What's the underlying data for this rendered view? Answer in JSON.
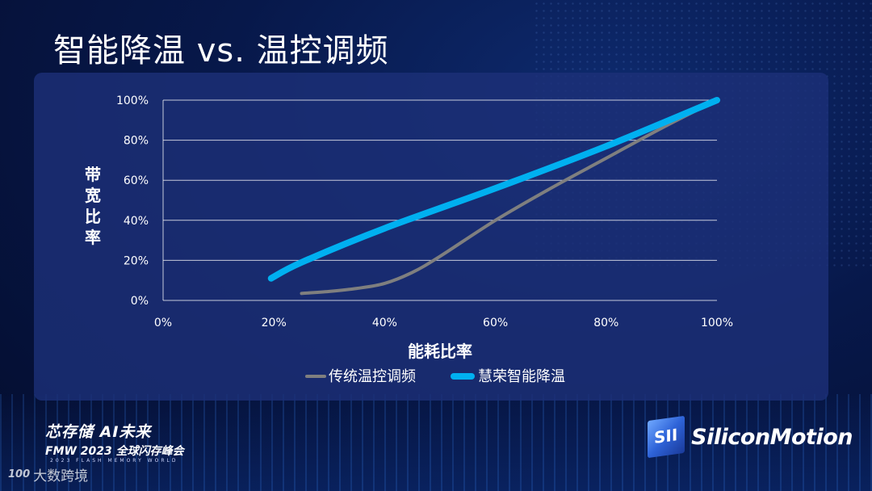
{
  "slide": {
    "title": "智能降温 vs. 温控调频"
  },
  "chart_data": {
    "type": "line",
    "title": "",
    "xlabel": "能耗比率",
    "ylabel": "带宽比率",
    "xlim": [
      0,
      100
    ],
    "ylim": [
      0,
      100
    ],
    "x_ticks": [
      "0%",
      "20%",
      "40%",
      "60%",
      "80%",
      "100%"
    ],
    "y_ticks": [
      "0%",
      "20%",
      "40%",
      "60%",
      "80%",
      "100%"
    ],
    "grid": "horizontal",
    "legend_position": "bottom",
    "series": [
      {
        "name": "传统温控调频",
        "color": "#7f7f7f",
        "x": [
          25,
          30,
          35,
          40,
          45,
          50,
          60,
          70,
          80,
          90,
          100
        ],
        "y": [
          3.5,
          4.5,
          6,
          8.5,
          14,
          22,
          40,
          56,
          71,
          86,
          100
        ]
      },
      {
        "name": "慧荣智能降温",
        "color": "#00b0f0",
        "x": [
          19.5,
          25,
          40,
          60,
          80,
          100
        ],
        "y": [
          11,
          19,
          36,
          56,
          77,
          100
        ]
      }
    ]
  },
  "footer": {
    "slogan": "芯存储 AI未来",
    "event": "FMW 2023 全球闪存峰会",
    "event_sub": "2023 FLASH MEMORY WORLD",
    "watermark": "大数跨境",
    "watermark_icon_label": "100",
    "brand": "SiliconMotion"
  }
}
